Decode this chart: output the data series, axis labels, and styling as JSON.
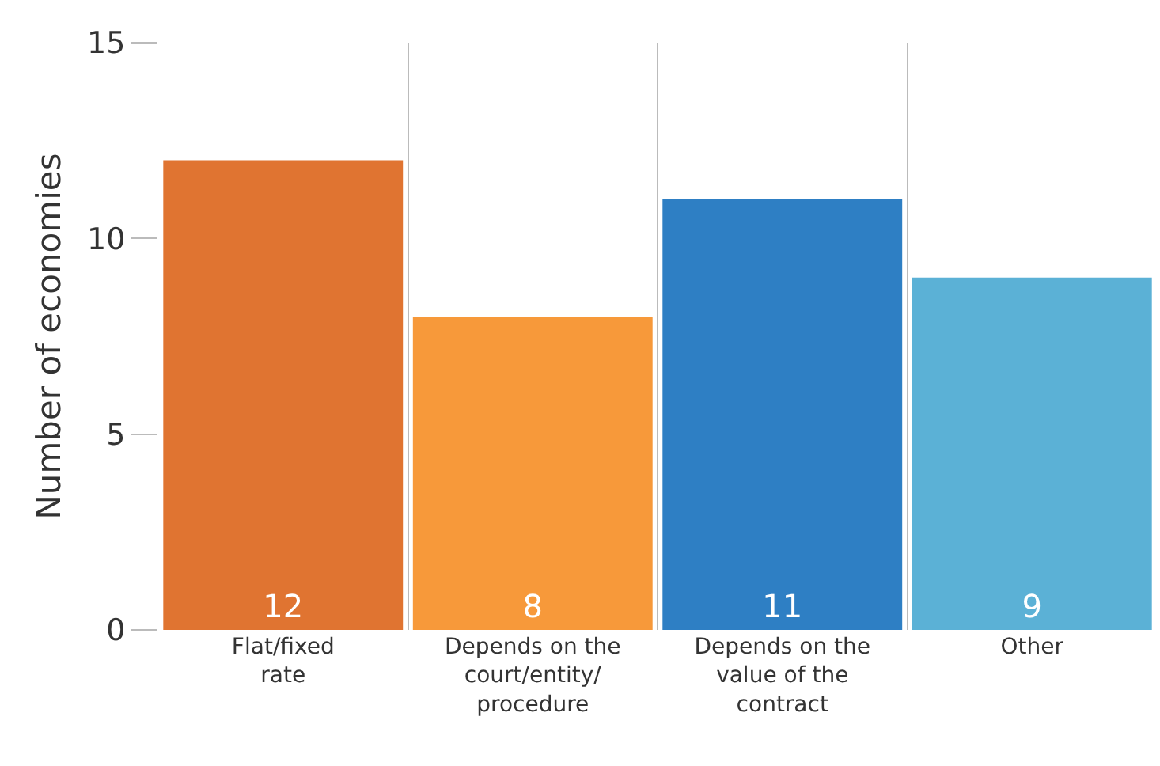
{
  "chart_data": {
    "type": "bar",
    "ylabel": "Number of economies",
    "categories": [
      "Flat/fixed rate",
      "Depends on the court/entity/procedure",
      "Depends on the value of the contract",
      "Other"
    ],
    "values": [
      12,
      8,
      11,
      9
    ],
    "colors": [
      "#e07431",
      "#f7993a",
      "#2e7fc4",
      "#5bb1d6"
    ],
    "ylim": [
      0,
      15
    ],
    "yticks": [
      0,
      5,
      10,
      15
    ],
    "grid": "x",
    "data_labels": true
  }
}
